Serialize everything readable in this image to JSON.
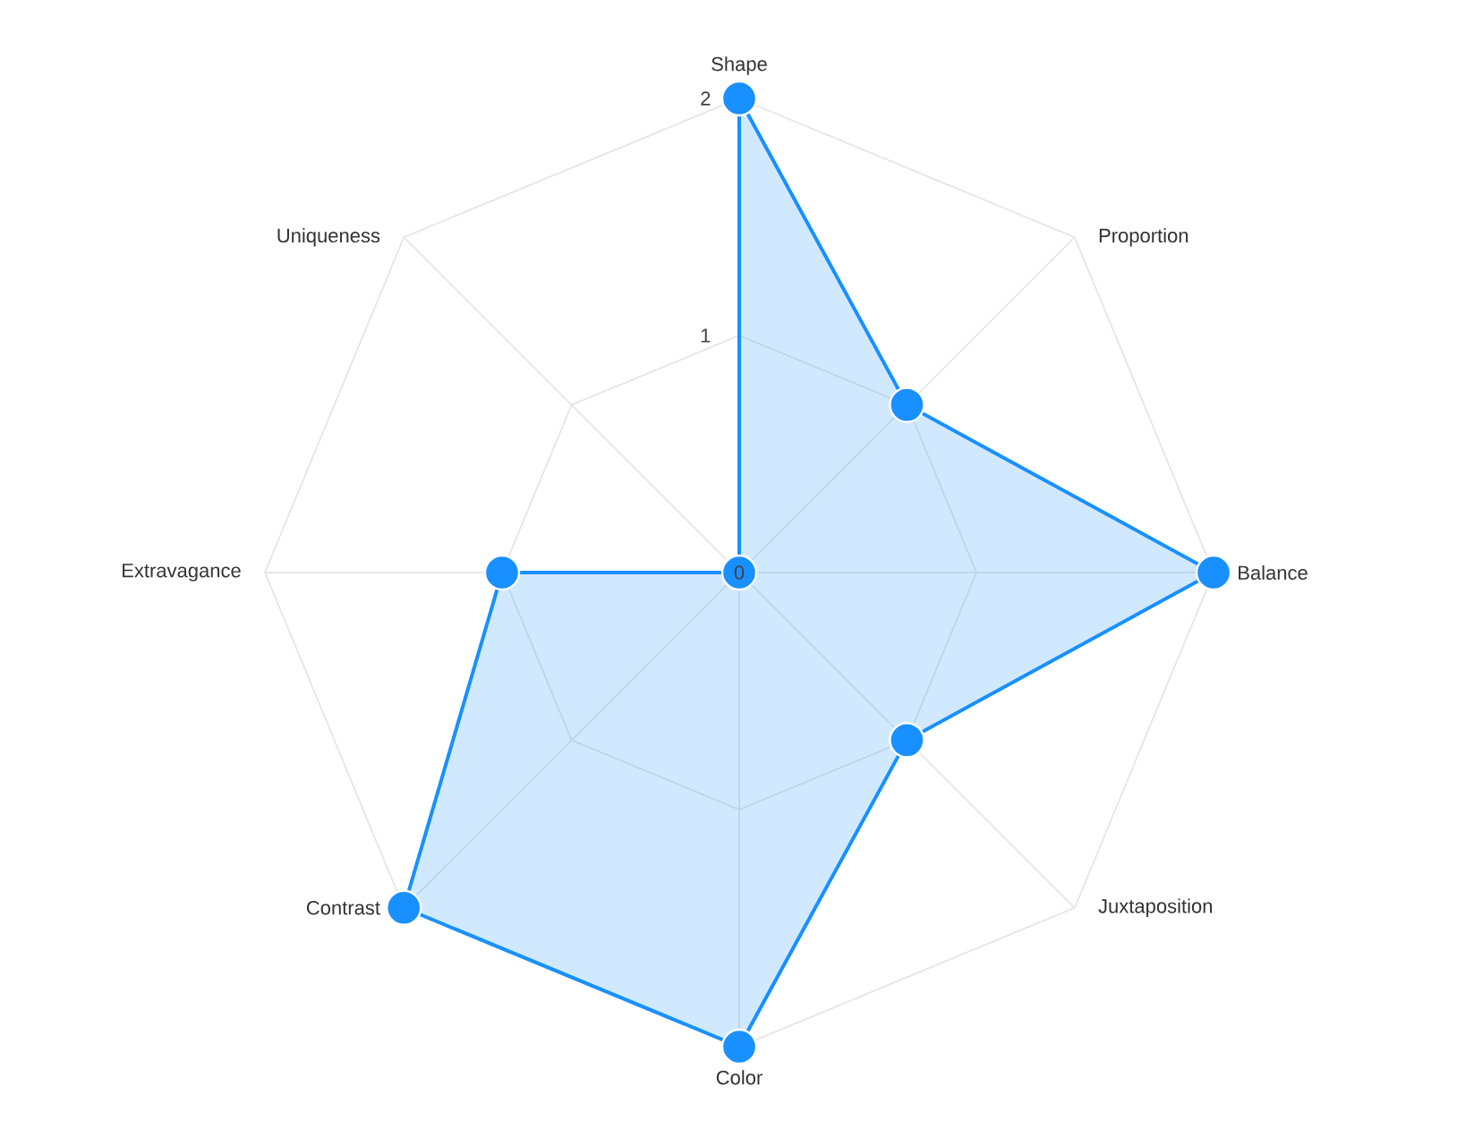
{
  "chart_data": {
    "type": "radar",
    "categories": [
      "Shape",
      "Proportion",
      "Balance",
      "Juxtaposition",
      "Color",
      "Contrast",
      "Extravagance",
      "Uniqueness"
    ],
    "series": [
      {
        "color": "#1890ff",
        "values": [
          2,
          1,
          2,
          1,
          2,
          2,
          1,
          0
        ]
      }
    ],
    "ylim": [
      0,
      2
    ],
    "yticks": [
      0,
      1,
      2
    ],
    "marker": "circle",
    "grid": true
  }
}
